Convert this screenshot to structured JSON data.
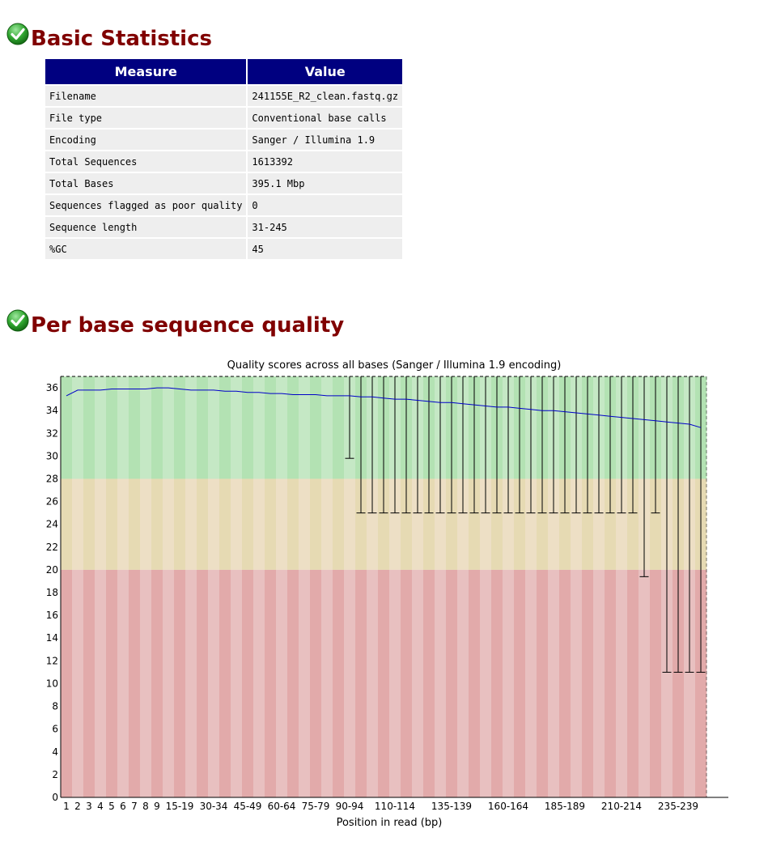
{
  "basic_stats": {
    "title": "Basic Statistics",
    "status_icon": "pass-check-icon",
    "headers": [
      "Measure",
      "Value"
    ],
    "rows": [
      {
        "measure": "Filename",
        "value": "241155E_R2_clean.fastq.gz"
      },
      {
        "measure": "File type",
        "value": "Conventional base calls"
      },
      {
        "measure": "Encoding",
        "value": "Sanger / Illumina 1.9"
      },
      {
        "measure": "Total Sequences",
        "value": "1613392"
      },
      {
        "measure": "Total Bases",
        "value": "395.1 Mbp"
      },
      {
        "measure": "Sequences flagged as poor quality",
        "value": "0"
      },
      {
        "measure": "Sequence length",
        "value": "31-245"
      },
      {
        "measure": "%GC",
        "value": "45"
      }
    ]
  },
  "per_base_quality": {
    "title": "Per base sequence quality",
    "status_icon": "pass-check-icon"
  },
  "colors": {
    "title": "#800000",
    "header_bg": "#000080",
    "row_bg": "#eeeeee",
    "zone_good": [
      "#b3e2b3",
      "#c5e8c5"
    ],
    "zone_warn": [
      "#e6dab3",
      "#eddfc5"
    ],
    "zone_bad": [
      "#e2aaaa",
      "#e8c0c0"
    ],
    "mean_line": "#0000c8"
  },
  "chart_data": {
    "type": "box-line",
    "title": "Quality scores across all bases (Sanger / Illumina 1.9 encoding)",
    "xlabel": "Position in read (bp)",
    "ylabel": "",
    "ylim": [
      0,
      37
    ],
    "yticks": [
      0,
      2,
      4,
      6,
      8,
      10,
      12,
      14,
      16,
      18,
      20,
      22,
      24,
      26,
      28,
      30,
      32,
      34,
      36
    ],
    "zones": [
      {
        "name": "good",
        "from": 28,
        "to": 37
      },
      {
        "name": "warn",
        "from": 20,
        "to": 28
      },
      {
        "name": "poor",
        "from": 0,
        "to": 20
      }
    ],
    "x": [
      "1",
      "2",
      "3",
      "4",
      "5",
      "6",
      "7",
      "8",
      "9",
      "10-14",
      "15-19",
      "20-24",
      "25-29",
      "30-34",
      "35-39",
      "40-44",
      "45-49",
      "50-54",
      "55-59",
      "60-64",
      "65-69",
      "70-74",
      "75-79",
      "80-84",
      "85-89",
      "90-94",
      "95-99",
      "100-104",
      "105-109",
      "110-114",
      "115-119",
      "120-124",
      "125-129",
      "130-134",
      "135-139",
      "140-144",
      "145-149",
      "150-154",
      "155-159",
      "160-164",
      "165-169",
      "170-174",
      "175-179",
      "180-184",
      "185-189",
      "190-194",
      "195-199",
      "200-204",
      "205-209",
      "210-214",
      "215-219",
      "220-224",
      "225-229",
      "230-234",
      "235-239",
      "240-244",
      "245"
    ],
    "x_tick_labels": [
      "1",
      "2",
      "3",
      "4",
      "5",
      "6",
      "7",
      "8",
      "9",
      "15-19",
      "30-34",
      "45-49",
      "60-64",
      "75-79",
      "90-94",
      "110-114",
      "135-139",
      "160-164",
      "185-189",
      "210-214",
      "235-239"
    ],
    "series": [
      {
        "name": "",
        "values": [
          35.3,
          35.8,
          35.8,
          35.8,
          35.9,
          35.9,
          35.9,
          35.9,
          36.0,
          36.0,
          35.9,
          35.8,
          35.8,
          35.8,
          35.7,
          35.7,
          35.6,
          35.6,
          35.5,
          35.5,
          35.4,
          35.4,
          35.4,
          35.3,
          35.3,
          35.3,
          35.2,
          35.2,
          35.1,
          35.0,
          35.0,
          34.9,
          34.8,
          34.7,
          34.7,
          34.6,
          34.5,
          34.4,
          34.3,
          34.3,
          34.2,
          34.1,
          34.0,
          34.0,
          33.9,
          33.8,
          33.7,
          33.6,
          33.5,
          33.4,
          33.3,
          33.2,
          33.1,
          33.0,
          32.9,
          32.8,
          32.5
        ]
      }
    ],
    "whiskers": [
      {
        "x": "90-94",
        "upper": 37,
        "lower": 29.8
      },
      {
        "x": "95-99",
        "upper": 37,
        "lower": 25
      },
      {
        "x": "100-104",
        "upper": 37,
        "lower": 25
      },
      {
        "x": "105-109",
        "upper": 37,
        "lower": 25
      },
      {
        "x": "110-114",
        "upper": 37,
        "lower": 25
      },
      {
        "x": "115-119",
        "upper": 37,
        "lower": 25
      },
      {
        "x": "120-124",
        "upper": 37,
        "lower": 25
      },
      {
        "x": "125-129",
        "upper": 37,
        "lower": 25
      },
      {
        "x": "130-134",
        "upper": 37,
        "lower": 25
      },
      {
        "x": "135-139",
        "upper": 37,
        "lower": 25
      },
      {
        "x": "140-144",
        "upper": 37,
        "lower": 25
      },
      {
        "x": "145-149",
        "upper": 37,
        "lower": 25
      },
      {
        "x": "150-154",
        "upper": 37,
        "lower": 25
      },
      {
        "x": "155-159",
        "upper": 37,
        "lower": 25
      },
      {
        "x": "160-164",
        "upper": 37,
        "lower": 25
      },
      {
        "x": "165-169",
        "upper": 37,
        "lower": 25
      },
      {
        "x": "170-174",
        "upper": 37,
        "lower": 25
      },
      {
        "x": "175-179",
        "upper": 37,
        "lower": 25
      },
      {
        "x": "180-184",
        "upper": 37,
        "lower": 25
      },
      {
        "x": "185-189",
        "upper": 37,
        "lower": 25
      },
      {
        "x": "190-194",
        "upper": 37,
        "lower": 25
      },
      {
        "x": "195-199",
        "upper": 37,
        "lower": 25
      },
      {
        "x": "200-204",
        "upper": 37,
        "lower": 25
      },
      {
        "x": "205-209",
        "upper": 37,
        "lower": 25
      },
      {
        "x": "210-214",
        "upper": 37,
        "lower": 25
      },
      {
        "x": "215-219",
        "upper": 37,
        "lower": 25
      },
      {
        "x": "220-224",
        "upper": 37,
        "lower": 19.4
      },
      {
        "x": "225-229",
        "upper": 37,
        "lower": 25
      },
      {
        "x": "230-234",
        "upper": 37,
        "lower": 11
      },
      {
        "x": "235-239",
        "upper": 37,
        "lower": 11
      },
      {
        "x": "240-244",
        "upper": 37,
        "lower": 11
      },
      {
        "x": "245",
        "upper": 37,
        "lower": 11
      }
    ],
    "grid": false,
    "legend": "none"
  }
}
